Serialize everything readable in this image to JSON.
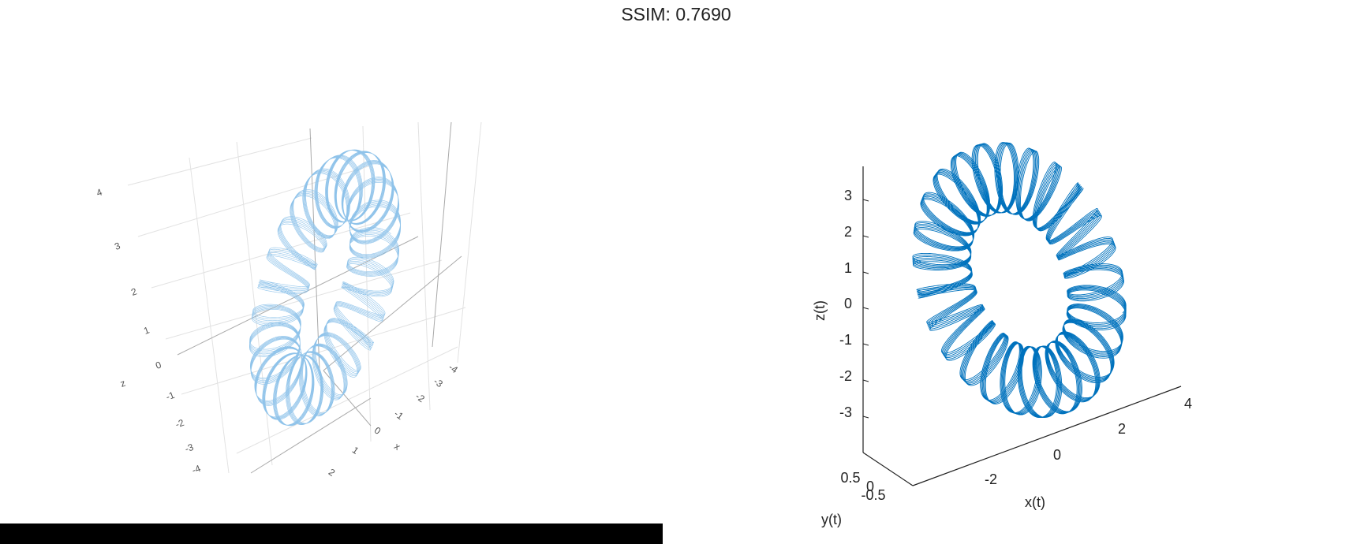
{
  "title": "SSIM: 0.7690",
  "left_plot": {
    "z_ticks": [
      "4",
      "3",
      "2",
      "1",
      "0",
      "-1",
      "-2",
      "-3",
      "-4"
    ],
    "z_label": "z",
    "x_ticks": [
      "-4",
      "-3",
      "-2",
      "-1",
      "0",
      "1",
      "2"
    ],
    "x_label": "x"
  },
  "right_plot": {
    "z_ticks": [
      "3",
      "2",
      "1",
      "0",
      "-1",
      "-2",
      "-3"
    ],
    "z_label": "z(t)",
    "x_ticks": [
      "-2",
      "0",
      "2",
      "4"
    ],
    "x_label": "x(t)",
    "y_ticks": [
      "0.5",
      "0",
      "-0.5"
    ],
    "y_label": "y(t)"
  }
}
